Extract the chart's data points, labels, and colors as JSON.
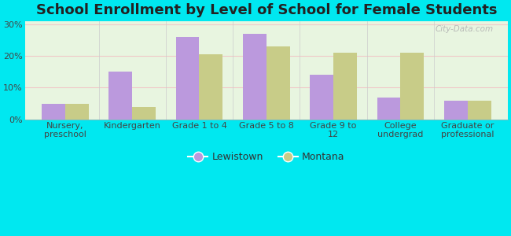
{
  "title": "School Enrollment by Level of School for Female Students",
  "categories": [
    "Nursery,\npreschool",
    "Kindergarten",
    "Grade 1 to 4",
    "Grade 5 to 8",
    "Grade 9 to\n12",
    "College\nundergrad",
    "Graduate or\nprofessional"
  ],
  "lewistown": [
    5.0,
    15.0,
    26.0,
    27.0,
    14.0,
    7.0,
    6.0
  ],
  "montana": [
    5.0,
    4.0,
    20.5,
    23.0,
    21.0,
    21.0,
    6.0
  ],
  "lewistown_color": "#bb99dd",
  "montana_color": "#c8cc88",
  "background_color": "#00e8f0",
  "plot_bg_color": "#e8f5e0",
  "grid_color": "#f0c8c8",
  "yticks": [
    0,
    10,
    20,
    30
  ],
  "ylim": [
    0,
    31
  ],
  "bar_width": 0.35,
  "title_fontsize": 13,
  "tick_fontsize": 8,
  "legend_fontsize": 9,
  "watermark": "City-Data.com"
}
